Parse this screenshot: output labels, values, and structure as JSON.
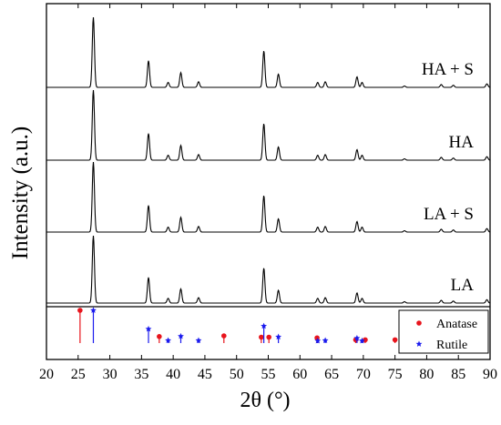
{
  "chart_data": {
    "type": "line",
    "xlabel": "2θ (°)",
    "ylabel": "Intensity (a.u.)",
    "xlim": [
      20,
      90
    ],
    "x_ticks": [
      20,
      25,
      30,
      35,
      40,
      45,
      50,
      55,
      60,
      65,
      70,
      75,
      80,
      85,
      90
    ],
    "y_ticks_shown": false,
    "grid": false,
    "legend_position": "top-right",
    "series_peaks": [
      {
        "x": 27.4,
        "h": 1.0
      },
      {
        "x": 36.1,
        "h": 0.38
      },
      {
        "x": 39.2,
        "h": 0.07
      },
      {
        "x": 41.2,
        "h": 0.21
      },
      {
        "x": 44.0,
        "h": 0.08
      },
      {
        "x": 54.3,
        "h": 0.52
      },
      {
        "x": 56.6,
        "h": 0.19
      },
      {
        "x": 62.8,
        "h": 0.07
      },
      {
        "x": 64.0,
        "h": 0.08
      },
      {
        "x": 69.0,
        "h": 0.15
      },
      {
        "x": 69.8,
        "h": 0.07
      },
      {
        "x": 76.5,
        "h": 0.02
      },
      {
        "x": 82.3,
        "h": 0.04
      },
      {
        "x": 84.2,
        "h": 0.03
      },
      {
        "x": 89.5,
        "h": 0.05
      }
    ],
    "series": [
      {
        "name": "HA + S"
      },
      {
        "name": "HA"
      },
      {
        "name": "LA + S"
      },
      {
        "name": "LA"
      }
    ],
    "reference": {
      "legend": [
        {
          "label": "Anatase",
          "color": "#e8141c",
          "marker": "circle"
        },
        {
          "label": "Rutile",
          "color": "#1a1aee",
          "marker": "star"
        }
      ],
      "anatase": [
        {
          "x": 25.3,
          "h": 1.0
        },
        {
          "x": 37.8,
          "h": 0.2
        },
        {
          "x": 48.0,
          "h": 0.22
        },
        {
          "x": 53.9,
          "h": 0.18
        },
        {
          "x": 55.1,
          "h": 0.18
        },
        {
          "x": 62.7,
          "h": 0.16
        },
        {
          "x": 68.8,
          "h": 0.1
        },
        {
          "x": 70.3,
          "h": 0.1
        },
        {
          "x": 75.0,
          "h": 0.1
        }
      ],
      "rutile": [
        {
          "x": 27.4,
          "h": 1.0
        },
        {
          "x": 36.1,
          "h": 0.43
        },
        {
          "x": 39.2,
          "h": 0.08
        },
        {
          "x": 41.2,
          "h": 0.21
        },
        {
          "x": 44.0,
          "h": 0.08
        },
        {
          "x": 54.3,
          "h": 0.52
        },
        {
          "x": 56.6,
          "h": 0.19
        },
        {
          "x": 62.8,
          "h": 0.07
        },
        {
          "x": 64.0,
          "h": 0.08
        },
        {
          "x": 69.0,
          "h": 0.15
        },
        {
          "x": 69.8,
          "h": 0.07
        }
      ]
    }
  }
}
